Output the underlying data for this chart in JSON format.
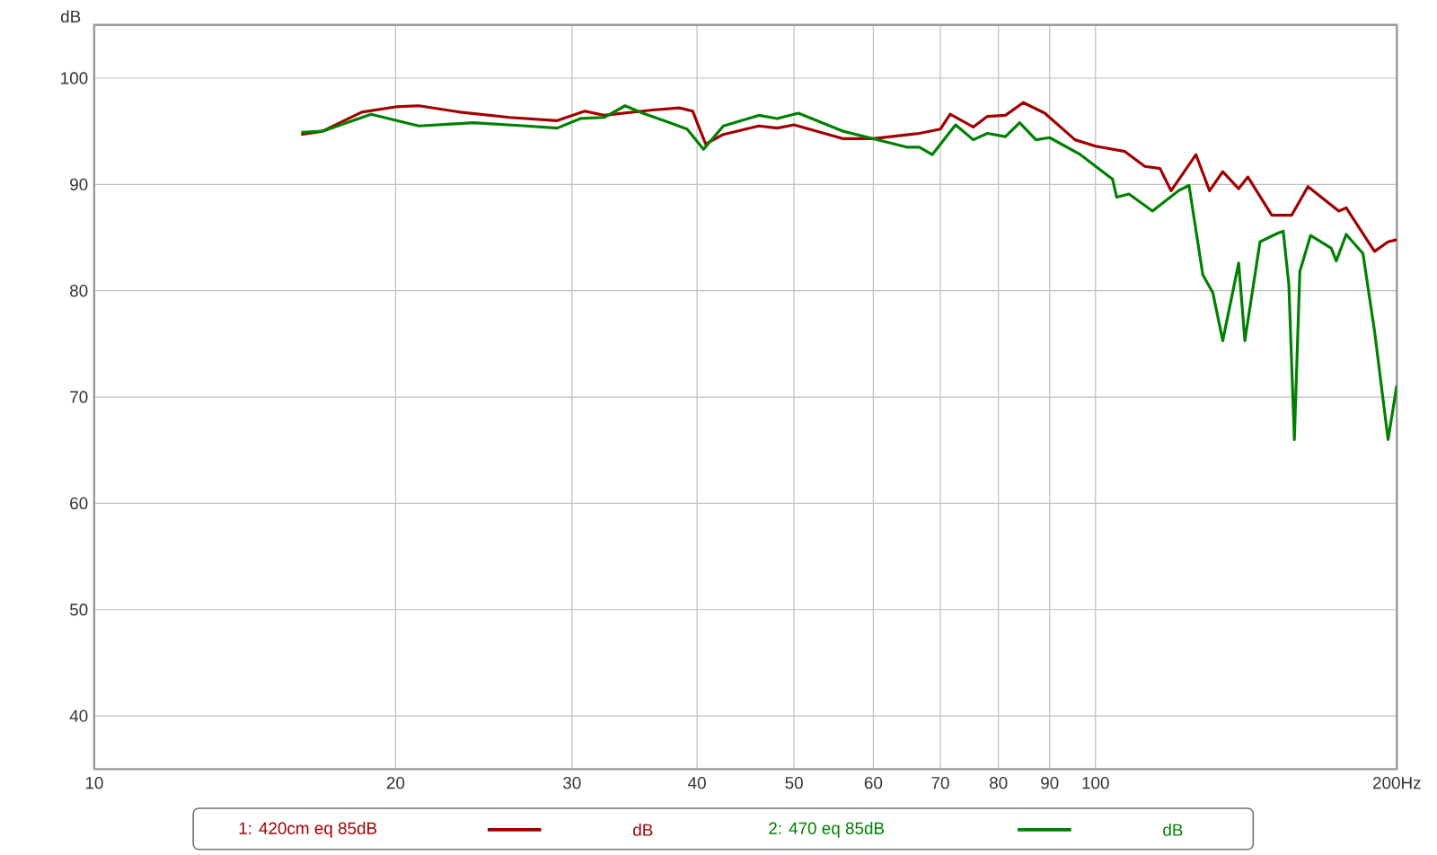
{
  "chart_data": {
    "type": "line",
    "ylabel": "dB",
    "log": "x",
    "grid": true,
    "legend": "bottom",
    "marker": "none",
    "line_style": "solid",
    "xlim": [
      10,
      200
    ],
    "ylim": [
      35,
      105
    ],
    "xticks": [
      10,
      20,
      30,
      40,
      50,
      60,
      70,
      80,
      90,
      100,
      {
        "value": 200,
        "label": "200Hz"
      }
    ],
    "yticks": [
      40,
      50,
      60,
      70,
      80,
      90,
      100
    ],
    "annotations": [
      "dB",
      "dB"
    ],
    "series": [
      {
        "name": "1: 420cm eq 85dB",
        "color": "#a00000",
        "x": [
          16.1,
          16.9,
          18.5,
          20,
          21.1,
          23.2,
          26,
          29,
          30.9,
          32.3,
          36.1,
          38.4,
          39.6,
          40.8,
          42.5,
          46.1,
          48.1,
          50,
          56,
          60,
          66.7,
          70,
          71.6,
          75.5,
          78,
          81.3,
          84.7,
          89,
          95.4,
          100,
          107,
          112,
          116,
          119,
          126,
          130,
          134,
          139,
          142,
          150,
          157,
          163,
          175,
          178,
          190,
          196,
          200
        ],
        "values": [
          94.7,
          95.0,
          96.8,
          97.3,
          97.4,
          96.8,
          96.3,
          96.0,
          96.9,
          96.5,
          97.0,
          97.2,
          96.9,
          93.8,
          94.7,
          95.5,
          95.3,
          95.6,
          94.3,
          94.3,
          94.8,
          95.2,
          96.6,
          95.4,
          96.4,
          96.5,
          97.7,
          96.7,
          94.2,
          93.6,
          93.1,
          91.7,
          91.5,
          89.4,
          92.8,
          89.4,
          91.2,
          89.6,
          90.7,
          87.1,
          87.1,
          89.8,
          87.5,
          87.8,
          83.7,
          84.6,
          84.8
        ]
      },
      {
        "name": "2: 470 eq 85dB",
        "color": "#008000",
        "x": [
          16.1,
          16.9,
          18.9,
          21.1,
          23.9,
          27,
          29,
          30.6,
          32.3,
          33.9,
          35.3,
          37.6,
          39.1,
          40.6,
          42.5,
          46.1,
          48.1,
          50.5,
          56,
          60,
          64.9,
          66.7,
          68.7,
          72.5,
          75.5,
          78,
          81.3,
          84,
          87.2,
          90,
          96.6,
          104,
          105,
          108,
          114,
          121,
          124,
          128,
          131,
          134,
          139,
          141,
          146,
          152,
          154,
          156,
          158,
          160,
          164,
          172,
          174,
          178,
          185,
          190,
          196,
          200
        ],
        "values": [
          94.9,
          95.0,
          96.6,
          95.5,
          95.8,
          95.5,
          95.3,
          96.2,
          96.3,
          97.4,
          96.7,
          95.8,
          95.2,
          93.3,
          95.5,
          96.5,
          96.2,
          96.7,
          95.0,
          94.3,
          93.5,
          93.5,
          92.8,
          95.6,
          94.2,
          94.8,
          94.5,
          95.8,
          94.2,
          94.4,
          92.8,
          90.5,
          88.8,
          89.1,
          87.5,
          89.4,
          89.9,
          81.5,
          79.8,
          75.3,
          82.6,
          75.3,
          84.6,
          85.4,
          85.6,
          80.6,
          66.0,
          81.8,
          85.2,
          84.0,
          82.8,
          85.3,
          83.5,
          76.2,
          66.0,
          71.1
        ]
      }
    ]
  }
}
